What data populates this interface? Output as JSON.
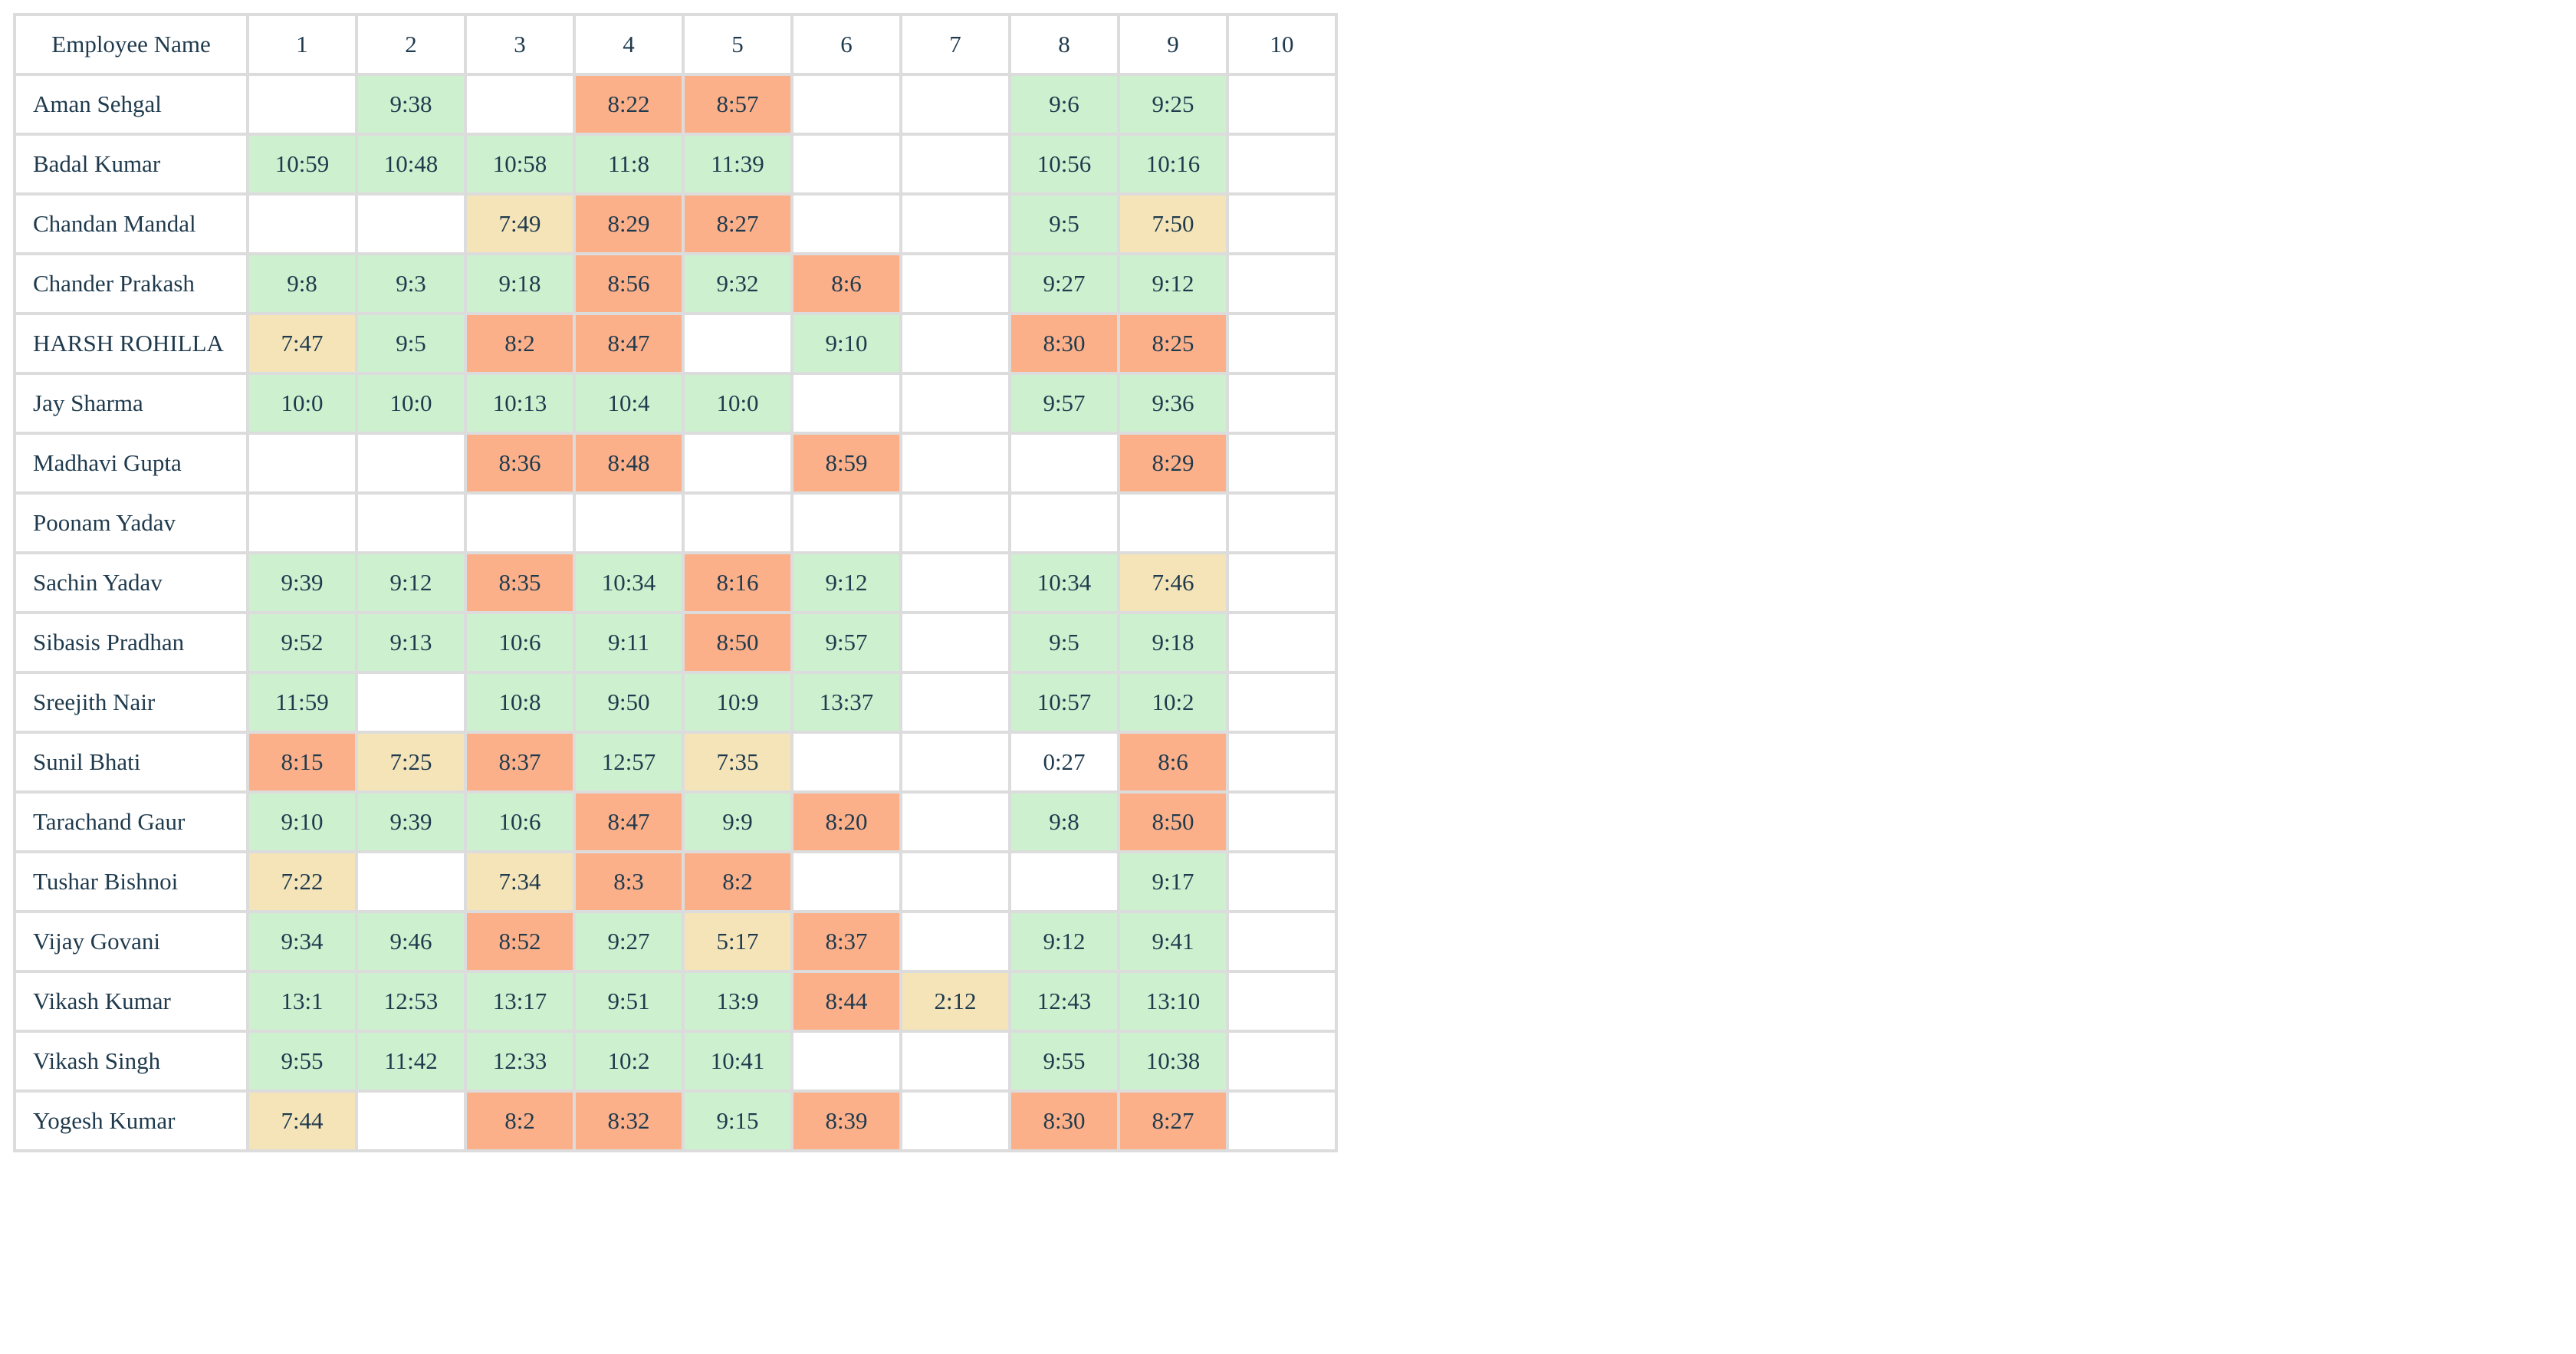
{
  "table": {
    "name_header": "Employee Name",
    "days": [
      "1",
      "2",
      "3",
      "4",
      "5",
      "6",
      "7",
      "8",
      "9",
      "10"
    ],
    "status_colors": {
      "green": "#cdf0cf",
      "orange": "#fbb08a",
      "yellow": "#f4e4b8",
      "empty": "#ffffff"
    },
    "rows": [
      {
        "name": "Aman Sehgal",
        "cells": [
          {
            "v": "",
            "s": "empty"
          },
          {
            "v": "9:38",
            "s": "green"
          },
          {
            "v": "",
            "s": "empty"
          },
          {
            "v": "8:22",
            "s": "orange"
          },
          {
            "v": "8:57",
            "s": "orange"
          },
          {
            "v": "",
            "s": "empty"
          },
          {
            "v": "",
            "s": "empty"
          },
          {
            "v": "9:6",
            "s": "green"
          },
          {
            "v": "9:25",
            "s": "green"
          },
          {
            "v": "",
            "s": "empty"
          }
        ]
      },
      {
        "name": "Badal Kumar",
        "cells": [
          {
            "v": "10:59",
            "s": "green"
          },
          {
            "v": "10:48",
            "s": "green"
          },
          {
            "v": "10:58",
            "s": "green"
          },
          {
            "v": "11:8",
            "s": "green"
          },
          {
            "v": "11:39",
            "s": "green"
          },
          {
            "v": "",
            "s": "empty"
          },
          {
            "v": "",
            "s": "empty"
          },
          {
            "v": "10:56",
            "s": "green"
          },
          {
            "v": "10:16",
            "s": "green"
          },
          {
            "v": "",
            "s": "empty"
          }
        ]
      },
      {
        "name": "Chandan Mandal",
        "cells": [
          {
            "v": "",
            "s": "empty"
          },
          {
            "v": "",
            "s": "empty"
          },
          {
            "v": "7:49",
            "s": "yellow"
          },
          {
            "v": "8:29",
            "s": "orange"
          },
          {
            "v": "8:27",
            "s": "orange"
          },
          {
            "v": "",
            "s": "empty"
          },
          {
            "v": "",
            "s": "empty"
          },
          {
            "v": "9:5",
            "s": "green"
          },
          {
            "v": "7:50",
            "s": "yellow"
          },
          {
            "v": "",
            "s": "empty"
          }
        ]
      },
      {
        "name": "Chander Prakash",
        "cells": [
          {
            "v": "9:8",
            "s": "green"
          },
          {
            "v": "9:3",
            "s": "green"
          },
          {
            "v": "9:18",
            "s": "green"
          },
          {
            "v": "8:56",
            "s": "orange"
          },
          {
            "v": "9:32",
            "s": "green"
          },
          {
            "v": "8:6",
            "s": "orange"
          },
          {
            "v": "",
            "s": "empty"
          },
          {
            "v": "9:27",
            "s": "green"
          },
          {
            "v": "9:12",
            "s": "green"
          },
          {
            "v": "",
            "s": "empty"
          }
        ]
      },
      {
        "name": "HARSH ROHILLA",
        "cells": [
          {
            "v": "7:47",
            "s": "yellow"
          },
          {
            "v": "9:5",
            "s": "green"
          },
          {
            "v": "8:2",
            "s": "orange"
          },
          {
            "v": "8:47",
            "s": "orange"
          },
          {
            "v": "",
            "s": "empty"
          },
          {
            "v": "9:10",
            "s": "green"
          },
          {
            "v": "",
            "s": "empty"
          },
          {
            "v": "8:30",
            "s": "orange"
          },
          {
            "v": "8:25",
            "s": "orange"
          },
          {
            "v": "",
            "s": "empty"
          }
        ]
      },
      {
        "name": "Jay Sharma",
        "cells": [
          {
            "v": "10:0",
            "s": "green"
          },
          {
            "v": "10:0",
            "s": "green"
          },
          {
            "v": "10:13",
            "s": "green"
          },
          {
            "v": "10:4",
            "s": "green"
          },
          {
            "v": "10:0",
            "s": "green"
          },
          {
            "v": "",
            "s": "empty"
          },
          {
            "v": "",
            "s": "empty"
          },
          {
            "v": "9:57",
            "s": "green"
          },
          {
            "v": "9:36",
            "s": "green"
          },
          {
            "v": "",
            "s": "empty"
          }
        ]
      },
      {
        "name": "Madhavi Gupta",
        "cells": [
          {
            "v": "",
            "s": "empty"
          },
          {
            "v": "",
            "s": "empty"
          },
          {
            "v": "8:36",
            "s": "orange"
          },
          {
            "v": "8:48",
            "s": "orange"
          },
          {
            "v": "",
            "s": "empty"
          },
          {
            "v": "8:59",
            "s": "orange"
          },
          {
            "v": "",
            "s": "empty"
          },
          {
            "v": "",
            "s": "empty"
          },
          {
            "v": "8:29",
            "s": "orange"
          },
          {
            "v": "",
            "s": "empty"
          }
        ]
      },
      {
        "name": "Poonam Yadav",
        "cells": [
          {
            "v": "",
            "s": "empty"
          },
          {
            "v": "",
            "s": "empty"
          },
          {
            "v": "",
            "s": "empty"
          },
          {
            "v": "",
            "s": "empty"
          },
          {
            "v": "",
            "s": "empty"
          },
          {
            "v": "",
            "s": "empty"
          },
          {
            "v": "",
            "s": "empty"
          },
          {
            "v": "",
            "s": "empty"
          },
          {
            "v": "",
            "s": "empty"
          },
          {
            "v": "",
            "s": "empty"
          }
        ]
      },
      {
        "name": "Sachin Yadav",
        "cells": [
          {
            "v": "9:39",
            "s": "green"
          },
          {
            "v": "9:12",
            "s": "green"
          },
          {
            "v": "8:35",
            "s": "orange"
          },
          {
            "v": "10:34",
            "s": "green"
          },
          {
            "v": "8:16",
            "s": "orange"
          },
          {
            "v": "9:12",
            "s": "green"
          },
          {
            "v": "",
            "s": "empty"
          },
          {
            "v": "10:34",
            "s": "green"
          },
          {
            "v": "7:46",
            "s": "yellow"
          },
          {
            "v": "",
            "s": "empty"
          }
        ]
      },
      {
        "name": "Sibasis Pradhan",
        "cells": [
          {
            "v": "9:52",
            "s": "green"
          },
          {
            "v": "9:13",
            "s": "green"
          },
          {
            "v": "10:6",
            "s": "green"
          },
          {
            "v": "9:11",
            "s": "green"
          },
          {
            "v": "8:50",
            "s": "orange"
          },
          {
            "v": "9:57",
            "s": "green"
          },
          {
            "v": "",
            "s": "empty"
          },
          {
            "v": "9:5",
            "s": "green"
          },
          {
            "v": "9:18",
            "s": "green"
          },
          {
            "v": "",
            "s": "empty"
          }
        ]
      },
      {
        "name": "Sreejith Nair",
        "cells": [
          {
            "v": "11:59",
            "s": "green"
          },
          {
            "v": "",
            "s": "empty"
          },
          {
            "v": "10:8",
            "s": "green"
          },
          {
            "v": "9:50",
            "s": "green"
          },
          {
            "v": "10:9",
            "s": "green"
          },
          {
            "v": "13:37",
            "s": "green"
          },
          {
            "v": "",
            "s": "empty"
          },
          {
            "v": "10:57",
            "s": "green"
          },
          {
            "v": "10:2",
            "s": "green"
          },
          {
            "v": "",
            "s": "empty"
          }
        ]
      },
      {
        "name": "Sunil Bhati",
        "cells": [
          {
            "v": "8:15",
            "s": "orange"
          },
          {
            "v": "7:25",
            "s": "yellow"
          },
          {
            "v": "8:37",
            "s": "orange"
          },
          {
            "v": "12:57",
            "s": "green"
          },
          {
            "v": "7:35",
            "s": "yellow"
          },
          {
            "v": "",
            "s": "empty"
          },
          {
            "v": "",
            "s": "empty"
          },
          {
            "v": "0:27",
            "s": "empty"
          },
          {
            "v": "8:6",
            "s": "orange"
          },
          {
            "v": "",
            "s": "empty"
          }
        ]
      },
      {
        "name": "Tarachand Gaur",
        "cells": [
          {
            "v": "9:10",
            "s": "green"
          },
          {
            "v": "9:39",
            "s": "green"
          },
          {
            "v": "10:6",
            "s": "green"
          },
          {
            "v": "8:47",
            "s": "orange"
          },
          {
            "v": "9:9",
            "s": "green"
          },
          {
            "v": "8:20",
            "s": "orange"
          },
          {
            "v": "",
            "s": "empty"
          },
          {
            "v": "9:8",
            "s": "green"
          },
          {
            "v": "8:50",
            "s": "orange"
          },
          {
            "v": "",
            "s": "empty"
          }
        ]
      },
      {
        "name": "Tushar Bishnoi",
        "cells": [
          {
            "v": "7:22",
            "s": "yellow"
          },
          {
            "v": "",
            "s": "empty"
          },
          {
            "v": "7:34",
            "s": "yellow"
          },
          {
            "v": "8:3",
            "s": "orange"
          },
          {
            "v": "8:2",
            "s": "orange"
          },
          {
            "v": "",
            "s": "empty"
          },
          {
            "v": "",
            "s": "empty"
          },
          {
            "v": "",
            "s": "empty"
          },
          {
            "v": "9:17",
            "s": "green"
          },
          {
            "v": "",
            "s": "empty"
          }
        ]
      },
      {
        "name": "Vijay Govani",
        "cells": [
          {
            "v": "9:34",
            "s": "green"
          },
          {
            "v": "9:46",
            "s": "green"
          },
          {
            "v": "8:52",
            "s": "orange"
          },
          {
            "v": "9:27",
            "s": "green"
          },
          {
            "v": "5:17",
            "s": "yellow"
          },
          {
            "v": "8:37",
            "s": "orange"
          },
          {
            "v": "",
            "s": "empty"
          },
          {
            "v": "9:12",
            "s": "green"
          },
          {
            "v": "9:41",
            "s": "green"
          },
          {
            "v": "",
            "s": "empty"
          }
        ]
      },
      {
        "name": "Vikash Kumar",
        "cells": [
          {
            "v": "13:1",
            "s": "green"
          },
          {
            "v": "12:53",
            "s": "green"
          },
          {
            "v": "13:17",
            "s": "green"
          },
          {
            "v": "9:51",
            "s": "green"
          },
          {
            "v": "13:9",
            "s": "green"
          },
          {
            "v": "8:44",
            "s": "orange"
          },
          {
            "v": "2:12",
            "s": "yellow"
          },
          {
            "v": "12:43",
            "s": "green"
          },
          {
            "v": "13:10",
            "s": "green"
          },
          {
            "v": "",
            "s": "empty"
          }
        ]
      },
      {
        "name": "Vikash Singh",
        "cells": [
          {
            "v": "9:55",
            "s": "green"
          },
          {
            "v": "11:42",
            "s": "green"
          },
          {
            "v": "12:33",
            "s": "green"
          },
          {
            "v": "10:2",
            "s": "green"
          },
          {
            "v": "10:41",
            "s": "green"
          },
          {
            "v": "",
            "s": "empty"
          },
          {
            "v": "",
            "s": "empty"
          },
          {
            "v": "9:55",
            "s": "green"
          },
          {
            "v": "10:38",
            "s": "green"
          },
          {
            "v": "",
            "s": "empty"
          }
        ]
      },
      {
        "name": "Yogesh Kumar",
        "cells": [
          {
            "v": "7:44",
            "s": "yellow"
          },
          {
            "v": "",
            "s": "empty"
          },
          {
            "v": "8:2",
            "s": "orange"
          },
          {
            "v": "8:32",
            "s": "orange"
          },
          {
            "v": "9:15",
            "s": "green"
          },
          {
            "v": "8:39",
            "s": "orange"
          },
          {
            "v": "",
            "s": "empty"
          },
          {
            "v": "8:30",
            "s": "orange"
          },
          {
            "v": "8:27",
            "s": "orange"
          },
          {
            "v": "",
            "s": "empty"
          }
        ]
      }
    ]
  }
}
